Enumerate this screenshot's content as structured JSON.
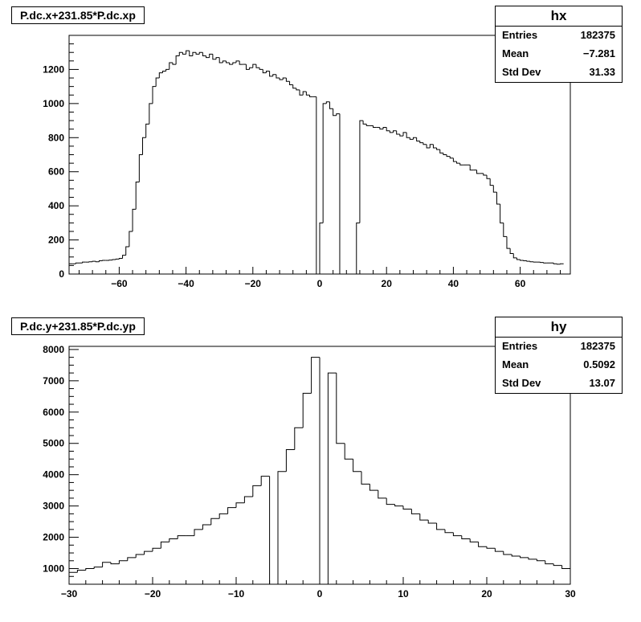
{
  "chart_data": [
    {
      "type": "histogram",
      "title": "P.dc.x+231.85*P.dc.xp",
      "stats": {
        "name": "hx",
        "rows": [
          {
            "label": "Entries",
            "value": "182375"
          },
          {
            "label": "Mean",
            "value": "−7.281"
          },
          {
            "label": "Std Dev",
            "value": "31.33"
          }
        ]
      },
      "xlim": [
        -75,
        75
      ],
      "ylim": [
        0,
        1400
      ],
      "xticks": [
        -60,
        -40,
        -20,
        0,
        20,
        40,
        60
      ],
      "yticks": [
        0,
        200,
        400,
        600,
        800,
        1000,
        1200
      ],
      "bin_start": -75,
      "bin_width": 1,
      "values": [
        60,
        60,
        65,
        65,
        70,
        70,
        72,
        75,
        72,
        78,
        80,
        80,
        82,
        85,
        88,
        92,
        110,
        160,
        250,
        380,
        540,
        700,
        800,
        880,
        1000,
        1100,
        1150,
        1180,
        1190,
        1200,
        1240,
        1230,
        1280,
        1300,
        1290,
        1310,
        1280,
        1300,
        1290,
        1300,
        1280,
        1270,
        1290,
        1260,
        1270,
        1240,
        1250,
        1240,
        1230,
        1240,
        1250,
        1230,
        1230,
        1200,
        1210,
        1230,
        1210,
        1200,
        1180,
        1190,
        1160,
        1170,
        1150,
        1140,
        1150,
        1130,
        1110,
        1090,
        1080,
        1050,
        1070,
        1050,
        1040,
        1040,
        0,
        300,
        1000,
        1010,
        970,
        930,
        940,
        0,
        0,
        0,
        0,
        0,
        300,
        900,
        880,
        870,
        870,
        860,
        860,
        850,
        860,
        840,
        830,
        840,
        820,
        810,
        830,
        800,
        790,
        800,
        780,
        770,
        760,
        740,
        760,
        740,
        730,
        710,
        700,
        690,
        680,
        660,
        650,
        640,
        640,
        640,
        610,
        610,
        590,
        590,
        580,
        560,
        520,
        480,
        410,
        300,
        220,
        150,
        120,
        95,
        85,
        80,
        78,
        75,
        72,
        70,
        70,
        68,
        65,
        65,
        65,
        60,
        58,
        60
      ]
    },
    {
      "type": "histogram",
      "title": "P.dc.y+231.85*P.dc.yp",
      "stats": {
        "name": "hy",
        "rows": [
          {
            "label": "Entries",
            "value": "182375"
          },
          {
            "label": "Mean",
            "value": "0.5092"
          },
          {
            "label": "Std Dev",
            "value": "13.07"
          }
        ]
      },
      "xlim": [
        -30,
        30
      ],
      "ylim": [
        500,
        8100
      ],
      "xticks": [
        -30,
        -20,
        -10,
        0,
        10,
        20,
        30
      ],
      "yticks": [
        1000,
        2000,
        3000,
        4000,
        5000,
        6000,
        7000,
        8000
      ],
      "bin_start": -30,
      "bin_width": 1,
      "values": [
        880,
        950,
        1000,
        1050,
        1200,
        1150,
        1250,
        1350,
        1450,
        1550,
        1650,
        1850,
        1950,
        2050,
        2050,
        2250,
        2400,
        2600,
        2750,
        2950,
        3100,
        3300,
        3650,
        3950,
        0,
        4100,
        4800,
        5500,
        6600,
        7750,
        0,
        7250,
        5000,
        4500,
        4100,
        3700,
        3500,
        3250,
        3050,
        3000,
        2900,
        2750,
        2550,
        2450,
        2250,
        2150,
        2050,
        1950,
        1850,
        1700,
        1650,
        1550,
        1450,
        1400,
        1350,
        1300,
        1250,
        1150,
        1100,
        1000
      ]
    }
  ]
}
